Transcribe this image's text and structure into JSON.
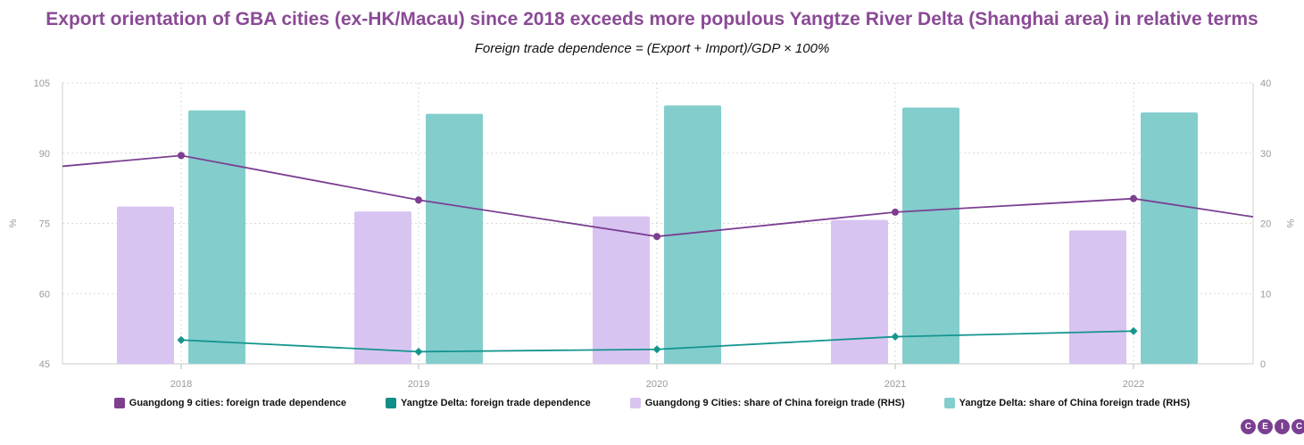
{
  "title": "Export orientation of GBA cities (ex-HK/Macau) since 2018 exceeds more populous Yangtze River Delta (Shanghai area) in relative terms",
  "subtitle": "Foreign trade dependence = (Export + Import)/GDP × 100%",
  "brand": [
    "C",
    "E",
    "I",
    "C"
  ],
  "chart_data": {
    "type": "bar",
    "categories": [
      "2018",
      "2019",
      "2020",
      "2021",
      "2022"
    ],
    "left_axis": {
      "label": "%",
      "ylim": [
        45,
        105
      ],
      "ticks": [
        45,
        60,
        75,
        90,
        105
      ]
    },
    "right_axis": {
      "label": "%",
      "ylim": [
        0,
        40
      ],
      "ticks": [
        0,
        10,
        20,
        30,
        40
      ]
    },
    "grid": true,
    "legend_position": "bottom",
    "series": [
      {
        "name": "Guangdong 9 cities: foreign trade dependence",
        "type": "line",
        "axis": "left",
        "color": "#7b3f91",
        "values": [
          89.5,
          80.0,
          72.2,
          77.4,
          80.3
        ],
        "extend_left": 87.2,
        "extend_right": 76.4
      },
      {
        "name": "Yangtze Delta: foreign trade dependence",
        "type": "line",
        "axis": "left",
        "color": "#14958e",
        "values": [
          50.1,
          47.6,
          48.1,
          50.8,
          52.0
        ]
      },
      {
        "name": "Guangdong 9 Cities: share of China foreign trade (RHS)",
        "type": "bar",
        "axis": "right",
        "color": "#d8c4f1",
        "values": [
          22.4,
          21.7,
          21.0,
          20.5,
          19.0
        ]
      },
      {
        "name": "Yangtze Delta: share of China foreign trade (RHS)",
        "type": "bar",
        "axis": "right",
        "color": "#83cdcd",
        "values": [
          36.1,
          35.6,
          36.8,
          36.5,
          35.8
        ]
      }
    ]
  }
}
